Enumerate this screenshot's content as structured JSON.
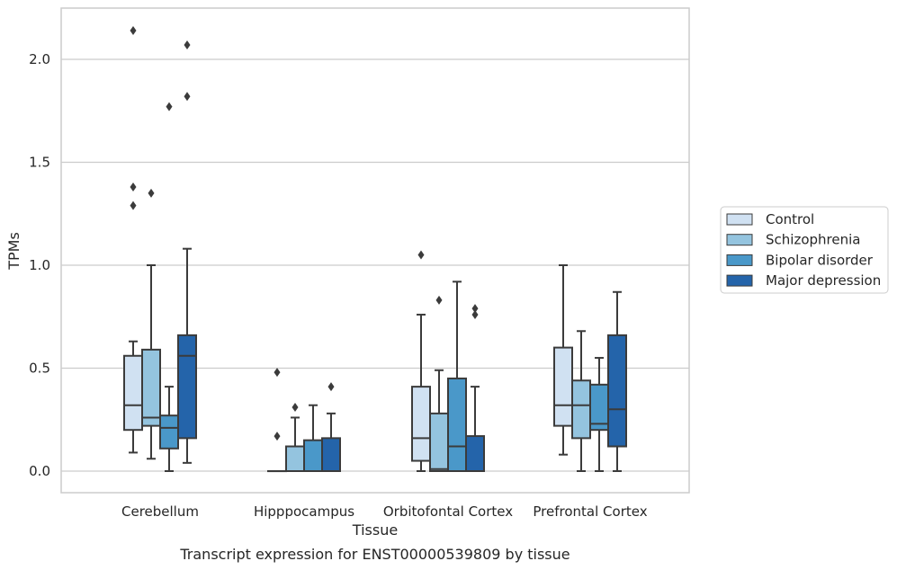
{
  "caption": "Transcript expression for ENST00000539809 by tissue",
  "chart_data": {
    "type": "boxplot",
    "xlabel": "Tissue",
    "ylabel": "TPMs",
    "ylim": [
      -0.1,
      2.25
    ],
    "yticks": [
      "0.0",
      "0.5",
      "1.0",
      "1.5",
      "2.0"
    ],
    "grid": "horizontal",
    "legend_position": "right",
    "categories": [
      "Cerebellum",
      "Hipppocampus",
      "Orbitofontal Cortex",
      "Prefrontal Cortex"
    ],
    "series": [
      {
        "name": "Control",
        "color": "#d0e1f2",
        "boxes": [
          {
            "whisker_low": 0.09,
            "q1": 0.2,
            "median": 0.32,
            "q3": 0.56,
            "whisker_high": 0.63,
            "outliers": [
              2.14,
              1.38,
              1.29
            ]
          },
          {
            "whisker_low": 0.0,
            "q1": 0.0,
            "median": 0.0,
            "q3": 0.0,
            "whisker_high": 0.0,
            "outliers": [
              0.48,
              0.17
            ]
          },
          {
            "whisker_low": 0.0,
            "q1": 0.05,
            "median": 0.16,
            "q3": 0.41,
            "whisker_high": 0.76,
            "outliers": [
              1.05
            ]
          },
          {
            "whisker_low": 0.08,
            "q1": 0.22,
            "median": 0.32,
            "q3": 0.6,
            "whisker_high": 1.0,
            "outliers": []
          }
        ]
      },
      {
        "name": "Schizophrenia",
        "color": "#94c4df",
        "boxes": [
          {
            "whisker_low": 0.06,
            "q1": 0.22,
            "median": 0.26,
            "q3": 0.59,
            "whisker_high": 1.0,
            "outliers": [
              1.35
            ]
          },
          {
            "whisker_low": 0.0,
            "q1": 0.0,
            "median": 0.0,
            "q3": 0.12,
            "whisker_high": 0.26,
            "outliers": [
              0.31
            ]
          },
          {
            "whisker_low": 0.0,
            "q1": 0.0,
            "median": 0.01,
            "q3": 0.28,
            "whisker_high": 0.49,
            "outliers": [
              0.83
            ]
          },
          {
            "whisker_low": 0.0,
            "q1": 0.16,
            "median": 0.32,
            "q3": 0.44,
            "whisker_high": 0.68,
            "outliers": []
          }
        ]
      },
      {
        "name": "Bipolar disorder",
        "color": "#4a98c9",
        "boxes": [
          {
            "whisker_low": 0.0,
            "q1": 0.11,
            "median": 0.21,
            "q3": 0.27,
            "whisker_high": 0.41,
            "outliers": [
              1.77
            ]
          },
          {
            "whisker_low": 0.0,
            "q1": 0.0,
            "median": 0.0,
            "q3": 0.15,
            "whisker_high": 0.32,
            "outliers": []
          },
          {
            "whisker_low": 0.0,
            "q1": 0.0,
            "median": 0.12,
            "q3": 0.45,
            "whisker_high": 0.92,
            "outliers": []
          },
          {
            "whisker_low": 0.0,
            "q1": 0.2,
            "median": 0.23,
            "q3": 0.42,
            "whisker_high": 0.55,
            "outliers": []
          }
        ]
      },
      {
        "name": "Major depression",
        "color": "#2464aa",
        "boxes": [
          {
            "whisker_low": 0.04,
            "q1": 0.16,
            "median": 0.56,
            "q3": 0.66,
            "whisker_high": 1.08,
            "outliers": [
              2.07,
              1.82
            ]
          },
          {
            "whisker_low": 0.0,
            "q1": 0.0,
            "median": 0.0,
            "q3": 0.16,
            "whisker_high": 0.28,
            "outliers": [
              0.41
            ]
          },
          {
            "whisker_low": 0.0,
            "q1": 0.0,
            "median": 0.0,
            "q3": 0.17,
            "whisker_high": 0.41,
            "outliers": [
              0.79,
              0.76
            ]
          },
          {
            "whisker_low": 0.0,
            "q1": 0.12,
            "median": 0.3,
            "q3": 0.66,
            "whisker_high": 0.87,
            "outliers": []
          }
        ]
      }
    ]
  }
}
